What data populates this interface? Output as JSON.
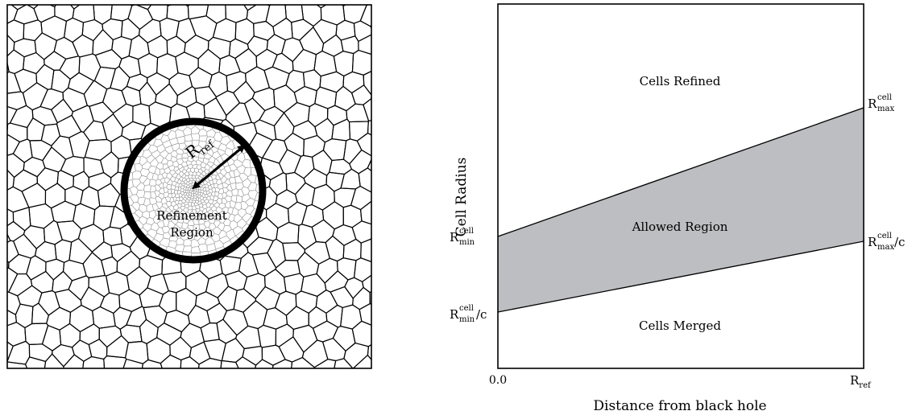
{
  "mesh_panel": {
    "radius_symbol": "R",
    "radius_subscript": "ref",
    "region_label_line1": "Refinement",
    "region_label_line2": "Region"
  },
  "plot_panel": {
    "xlabel": "Distance from black hole",
    "ylabel": "Cell Radius",
    "x_tick_start": "0.0",
    "x_tick_end_symbol": "R",
    "x_tick_end_sub": "ref",
    "region_above": "Cells Refined",
    "region_middle": "Allowed Region",
    "region_below": "Cells Merged",
    "left_upper": {
      "symbol": "R",
      "sup": "cell",
      "sub": "min",
      "suffix": ""
    },
    "left_lower": {
      "symbol": "R",
      "sup": "cell",
      "sub": "min",
      "suffix": "/c"
    },
    "right_upper": {
      "symbol": "R",
      "sup": "cell",
      "sub": "max",
      "suffix": ""
    },
    "right_lower": {
      "symbol": "R",
      "sup": "cell",
      "sub": "max",
      "suffix": "/c"
    },
    "band_fill": "#bdbec2"
  }
}
